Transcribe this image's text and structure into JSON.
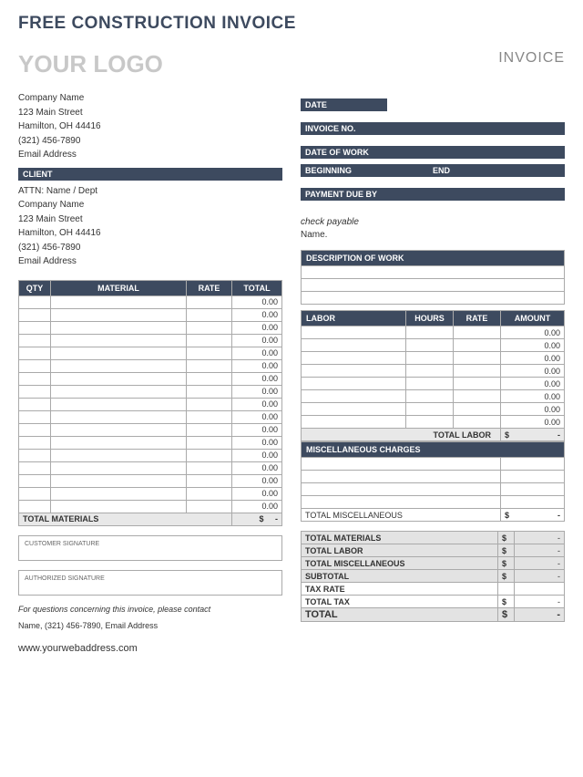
{
  "title": "FREE CONSTRUCTION INVOICE",
  "logo_text": "YOUR LOGO",
  "invoice_word": "INVOICE",
  "company": {
    "name": "Company Name",
    "street": "123 Main Street",
    "city": "Hamilton, OH  44416",
    "phone": "(321) 456-7890",
    "email": "Email Address"
  },
  "labels": {
    "date": "DATE",
    "invoice_no": "INVOICE NO.",
    "date_of_work": "DATE OF WORK",
    "beginning": "BEGINNING",
    "end": "END",
    "payment_due": "PAYMENT DUE BY",
    "client": "CLIENT",
    "check_payable": "check payable",
    "name": "Name.",
    "qty": "QTY",
    "material": "MATERIAL",
    "rate": "RATE",
    "total": "TOTAL",
    "total_materials": "TOTAL MATERIALS",
    "customer_sig": "CUSTOMER SIGNATURE",
    "auth_sig": "AUTHORIZED SIGNATURE",
    "concern": "For questions concerning this invoice, please contact",
    "desc_work": "DESCRIPTION OF WORK",
    "labor": "LABOR",
    "hours": "HOURS",
    "amount": "AMOUNT",
    "total_labor": "TOTAL LABOR",
    "misc_charges": "MISCELLANEOUS CHARGES",
    "total_misc": "TOTAL MISCELLANEOUS",
    "subtotal": "SUBTOTAL",
    "tax_rate": "TAX RATE",
    "total_tax": "TOTAL TAX",
    "grand_total": "TOTAL",
    "dollar": "$",
    "dash": "-"
  },
  "client": {
    "attn": "ATTN: Name / Dept",
    "name": "Company Name",
    "street": "123 Main Street",
    "city": "Hamilton, OH 44416",
    "phone": "(321) 456-7890",
    "email": "Email Address"
  },
  "contact_line": "Name, (321) 456-7890, Email Address",
  "web": "www.yourwebaddress.com",
  "zero": "0.00",
  "material_rows": 17,
  "desc_rows": 3,
  "labor_rows": 8,
  "misc_rows": 4,
  "colors": {
    "bar_bg": "#3d4a5f",
    "grey_bg": "#e3e3e3",
    "logo_grey": "#c8c8c8",
    "border": "#aaaaaa"
  }
}
